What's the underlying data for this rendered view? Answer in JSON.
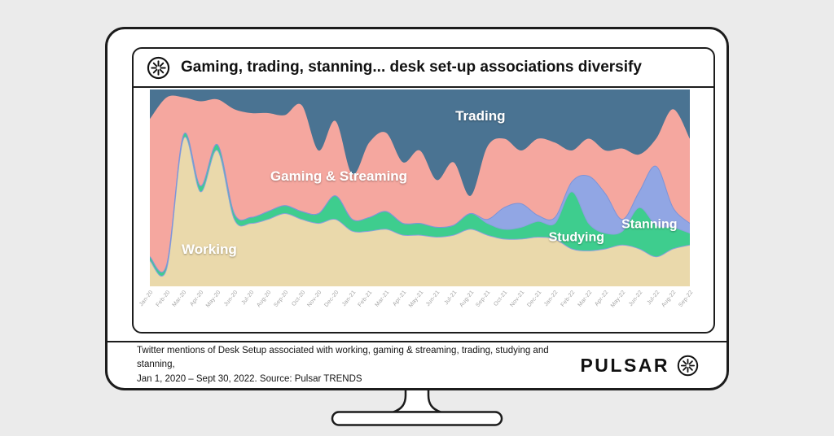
{
  "page": {
    "background": "#ebebeb"
  },
  "header": {
    "title": "Gaming, trading, stanning... desk set-up associations diversify",
    "logo_icon": "pulsar-starburst-icon"
  },
  "footer": {
    "caption_line1": "Twitter mentions of Desk Setup associated with working, gaming & streaming, trading, studying and stanning,",
    "caption_line2": "Jan 1, 2020 – Sept 30, 2022. Source: Pulsar TRENDS",
    "brand_name": "PULSAR"
  },
  "chart_data": {
    "type": "area",
    "variant": "100pct-stacked-share-of-mentions",
    "title": "Gaming, trading, stanning... desk set-up associations diversify",
    "xlabel": "",
    "ylabel": "",
    "grid": false,
    "legend_position": "in-plot-labels",
    "categories": [
      "Jan-20",
      "Feb-20",
      "Mar-20",
      "Apr-20",
      "May-20",
      "Jun-20",
      "Jul-20",
      "Aug-20",
      "Sep-20",
      "Oct-20",
      "Nov-20",
      "Dec-20",
      "Jan-21",
      "Feb-21",
      "Mar-21",
      "Apr-21",
      "May-21",
      "Jun-21",
      "Jul-21",
      "Aug-21",
      "Sep-21",
      "Oct-21",
      "Nov-21",
      "Dec-21",
      "Jan-22",
      "Feb-22",
      "Mar-22",
      "Apr-22",
      "May-22",
      "Jun-22",
      "Jul-22",
      "Aug-22",
      "Sep-22"
    ],
    "series": [
      {
        "name": "Working",
        "color": "#ead9ab",
        "edge": "#8aa0dd",
        "values": [
          13,
          9,
          75,
          48,
          69,
          34,
          32,
          34,
          37,
          34,
          32,
          34,
          28,
          28,
          29,
          26,
          26,
          25,
          26,
          29,
          26,
          24,
          24,
          25,
          24,
          19,
          18,
          19,
          21,
          19,
          15,
          19,
          21
        ]
      },
      {
        "name": "Studying",
        "color": "#3ecd8e",
        "edge": "#8aa0dd",
        "values": [
          2,
          2,
          2,
          3,
          3,
          3,
          3,
          4,
          4,
          4,
          5,
          12,
          6,
          7,
          9,
          6,
          6,
          5,
          5,
          8,
          6,
          5,
          6,
          8,
          8,
          29,
          14,
          8,
          7,
          21,
          16,
          11,
          6
        ]
      },
      {
        "name": "Stanning",
        "color": "#91a6e4",
        "edge": "#7d93d8",
        "values": [
          0,
          0,
          0,
          0,
          0,
          0,
          0,
          0,
          0,
          0,
          0,
          0,
          0,
          0,
          0,
          0,
          0,
          0,
          0,
          0,
          2,
          11,
          12,
          3,
          3,
          5,
          24,
          20,
          6,
          8,
          30,
          10,
          5
        ]
      },
      {
        "name": "Gaming & Streaming",
        "color": "#f5a79f",
        "edge": null,
        "values": [
          70,
          85,
          19,
          43,
          23,
          53,
          53,
          50,
          46,
          54,
          32,
          38,
          23,
          38,
          40,
          31,
          37,
          24,
          32,
          9,
          37,
          35,
          27,
          39,
          38,
          16,
          19,
          22,
          36,
          19,
          14,
          50,
          43
        ]
      },
      {
        "name": "Trading",
        "color": "#4a7392",
        "edge": null,
        "values": [
          15,
          4,
          4,
          6,
          5,
          10,
          12,
          12,
          13,
          8,
          31,
          16,
          43,
          27,
          22,
          37,
          31,
          46,
          37,
          54,
          29,
          25,
          31,
          25,
          27,
          31,
          25,
          31,
          30,
          33,
          25,
          10,
          25
        ]
      }
    ],
    "labels": [
      {
        "text": "Working",
        "x": 0.11,
        "y": 0.835,
        "size": 17
      },
      {
        "text": "Gaming & Streaming",
        "x": 0.35,
        "y": 0.462,
        "size": 17
      },
      {
        "text": "Trading",
        "x": 0.612,
        "y": 0.157,
        "size": 17
      },
      {
        "text": "Studying",
        "x": 0.79,
        "y": 0.77,
        "size": 16
      },
      {
        "text": "Stanning",
        "x": 0.925,
        "y": 0.705,
        "size": 16
      }
    ]
  }
}
